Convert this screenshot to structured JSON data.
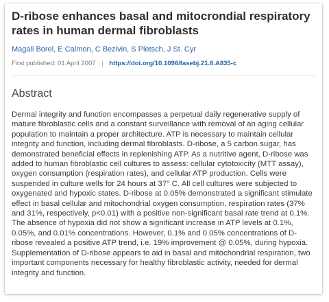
{
  "article": {
    "title": "D-ribose enhances basal and mitocrondial respiratory rates in human dermal fibroblasts",
    "authors": [
      "Magali Borel",
      "E Calmon",
      "C Bezivin",
      "S Pletsch",
      "J St. Cyr"
    ],
    "first_published_label": "First published: 01 April 2007",
    "separator": "|",
    "doi": "https://doi.org/10.1096/fasebj.21.6.A835-c"
  },
  "abstract": {
    "heading": "Abstract",
    "text": "Dermal integrity and function encompasses a perpetual daily regenerative supply of mature fibroblastic cells and a constant surveillance with removal of an aging cellular population to maintain a proper architecture. ATP is necessary to maintain cellular integrity and function, including dermal fibroblasts. D-ribose, a 5 carbon sugar, has demonstrated beneficial effects in replenishing ATP. As a nutritive agent, D-ribose was added to human fibroblastic cell cultures to assess: cellular cytotoxicity (MTT assay), oxygen consumption (respiration rates), and cellular ATP production. Cells were suspended in culture wells for 24 hours at 37° C. All cell cultures were subjected to oxygenated and hypoxic states. D-ribose at 0.05% demonstrated a significant stimulate effect in basal cellular and mitochondrial oxygen consumption, respiration rates (37% and 31%, respectively, p<0.01) with a positive non-significant basal rate trend at 0.1%. The absence of hypoxia did not show a significant increase in ATP levels at 0.1%, 0.05%, and 0.01% concentrations. However, 0.1% and 0.05% concentrations of D-ribose revealed a positive ATP trend, i.e. 19% improvement @ 0.05%, during hypoxia. Supplementation of D-ribose appears to aid in basal and mitochondrial respiration, two important components necessary for healthy fibroblastic activity, needed for dermal integrity and function."
  },
  "colors": {
    "link": "#2563a3",
    "title": "#2f2f2f",
    "body_text": "#3a3a3a"
  }
}
